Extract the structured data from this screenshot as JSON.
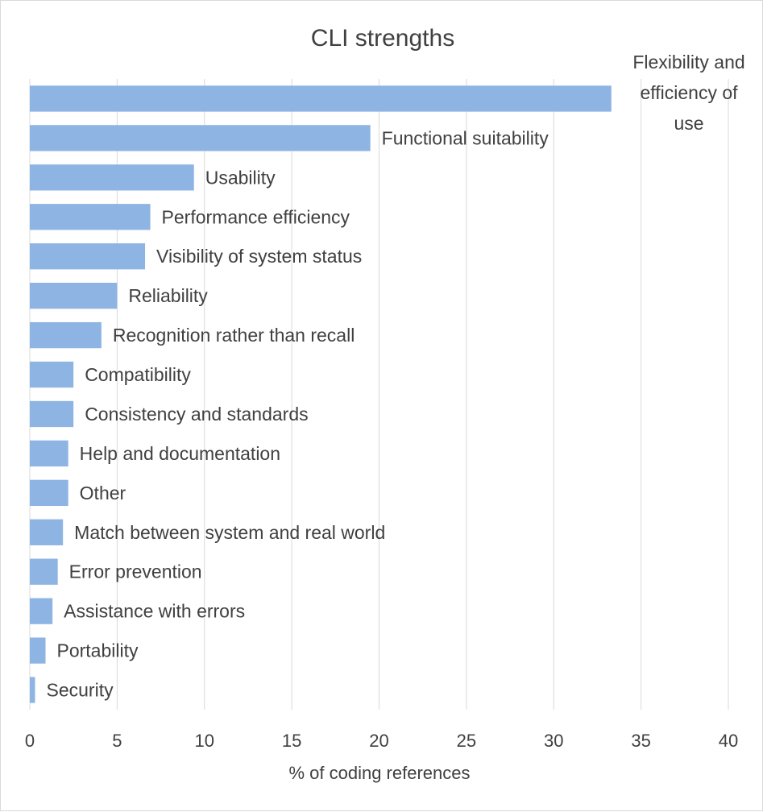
{
  "chart_data": {
    "type": "bar",
    "orientation": "horizontal",
    "title": "CLI strengths",
    "xlabel": "% of coding references",
    "ylabel": "",
    "xlim": [
      0,
      40
    ],
    "xticks": [
      0,
      5,
      10,
      15,
      20,
      25,
      30,
      35,
      40
    ],
    "grid": true,
    "bar_color": "#8eb4e3",
    "categories": [
      "Flexibility and efficiency of use",
      "Functional suitability",
      "Usability",
      "Performance efficiency",
      "Visibility of system status",
      "Reliability",
      "Recognition rather than recall",
      "Compatibility",
      "Consistency and standards",
      "Help and documentation",
      "Other",
      "Match between system and real world",
      "Error prevention",
      "Assistance with errors",
      "Portability",
      "Security"
    ],
    "label_lines": [
      [
        "Flexibility and",
        "efficiency of",
        "use"
      ],
      [
        "Functional suitability"
      ],
      [
        "Usability"
      ],
      [
        "Performance efficiency"
      ],
      [
        "Visibility of system status"
      ],
      [
        "Reliability"
      ],
      [
        "Recognition rather than recall"
      ],
      [
        "Compatibility"
      ],
      [
        "Consistency and standards"
      ],
      [
        "Help and documentation"
      ],
      [
        "Other"
      ],
      [
        "Match between system and real world"
      ],
      [
        "Error prevention"
      ],
      [
        "Assistance with errors"
      ],
      [
        "Portability"
      ],
      [
        "Security"
      ]
    ],
    "values": [
      33.3,
      19.5,
      9.4,
      6.9,
      6.6,
      5.0,
      4.1,
      2.5,
      2.5,
      2.2,
      2.2,
      1.9,
      1.6,
      1.3,
      0.9,
      0.3
    ]
  }
}
